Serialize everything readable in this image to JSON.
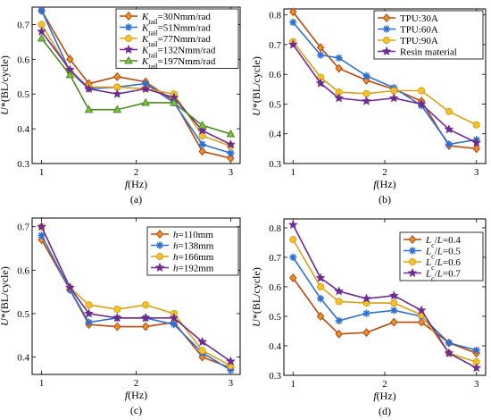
{
  "chart_data": [
    {
      "type": "line",
      "panel_label": "(a)",
      "xlabel_prefix": "f",
      "xlabel": "(Hz)",
      "ylabel_prefix": "U",
      "ylabel": "*(BL/cycle)",
      "xlim": [
        0.9,
        3.1
      ],
      "ylim": [
        0.3,
        0.75
      ],
      "xticks": [
        1,
        2,
        3
      ],
      "yticks": [
        0.3,
        0.4,
        0.5,
        0.6,
        0.7
      ],
      "legend_position": "top-right",
      "x": [
        1,
        1.3,
        1.5,
        1.8,
        2.1,
        2.4,
        2.7,
        3
      ],
      "series": [
        {
          "name_prefix": "K",
          "name_sub": "tail",
          "name": "=30Nmm/rad",
          "color": "#e8912a",
          "edge": "#b54a0e",
          "marker": "diamond",
          "values": [
            0.74,
            0.6,
            0.53,
            0.55,
            0.535,
            0.48,
            0.335,
            0.315
          ]
        },
        {
          "name_prefix": "K",
          "name_sub": "tail",
          "name": "=51Nmm/rad",
          "color": "#2f6fd0",
          "edge": "#2f6fd0",
          "marker": "asterisk",
          "values": [
            0.74,
            0.565,
            0.515,
            0.52,
            0.53,
            0.475,
            0.355,
            0.33
          ]
        },
        {
          "name_prefix": "K",
          "name_sub": "tail",
          "name": "=77Nmm/rad",
          "color": "#f2c22e",
          "edge": "#d8a21a",
          "marker": "circle",
          "values": [
            0.7,
            0.565,
            0.52,
            0.52,
            0.515,
            0.5,
            0.38,
            0.35
          ]
        },
        {
          "name_prefix": "K",
          "name_sub": "tail",
          "name": "=132Nmm/rad",
          "color": "#6e2c8e",
          "edge": "#6e2c8e",
          "marker": "star",
          "values": [
            0.68,
            0.57,
            0.515,
            0.5,
            0.515,
            0.49,
            0.395,
            0.355
          ]
        },
        {
          "name_prefix": "K",
          "name_sub": "tail",
          "name": "=197Nmm/rad",
          "color": "#7cc043",
          "edge": "#4e8a25",
          "marker": "triangle",
          "values": [
            0.66,
            0.555,
            0.455,
            0.455,
            0.475,
            0.475,
            0.41,
            0.385
          ]
        }
      ]
    },
    {
      "type": "line",
      "panel_label": "(b)",
      "xlabel_prefix": "f",
      "xlabel": "(Hz)",
      "ylabel_prefix": "U",
      "ylabel": "*(BL/cycle)",
      "xlim": [
        0.9,
        3.1
      ],
      "ylim": [
        0.3,
        0.82
      ],
      "xticks": [
        1,
        2,
        3
      ],
      "yticks": [
        0.3,
        0.4,
        0.5,
        0.6,
        0.7,
        0.8
      ],
      "legend_position": "top-right",
      "x": [
        1,
        1.3,
        1.5,
        1.8,
        2.1,
        2.4,
        2.7,
        3
      ],
      "series": [
        {
          "name": "TPU:30A",
          "color": "#e8912a",
          "edge": "#b54a0e",
          "marker": "diamond",
          "values": [
            0.81,
            0.69,
            0.62,
            0.58,
            0.55,
            0.51,
            0.36,
            0.35
          ]
        },
        {
          "name": "TPU:60A",
          "color": "#2f6fd0",
          "edge": "#2f6fd0",
          "marker": "asterisk",
          "values": [
            0.775,
            0.665,
            0.655,
            0.595,
            0.555,
            0.495,
            0.365,
            0.38
          ]
        },
        {
          "name": "TPU:90A",
          "color": "#f2c22e",
          "edge": "#d8a21a",
          "marker": "circle",
          "values": [
            0.71,
            0.59,
            0.54,
            0.535,
            0.545,
            0.545,
            0.475,
            0.43
          ]
        },
        {
          "name": "Resin material",
          "color": "#6e2c8e",
          "edge": "#6e2c8e",
          "marker": "star",
          "values": [
            0.7,
            0.57,
            0.52,
            0.51,
            0.52,
            0.5,
            0.415,
            0.37
          ]
        }
      ]
    },
    {
      "type": "line",
      "panel_label": "(c)",
      "xlabel_prefix": "f",
      "xlabel": "(Hz)",
      "ylabel_prefix": "U",
      "ylabel": "*(BL/cycle)",
      "xlim": [
        0.9,
        3.1
      ],
      "ylim": [
        0.36,
        0.72
      ],
      "xticks": [
        1,
        2,
        3
      ],
      "yticks": [
        0.4,
        0.5,
        0.6,
        0.7
      ],
      "legend_position": "top-right",
      "x": [
        1,
        1.3,
        1.5,
        1.8,
        2.1,
        2.4,
        2.7,
        3
      ],
      "series": [
        {
          "name_prefix": "h",
          "name": "=110mm",
          "color": "#e8912a",
          "edge": "#b54a0e",
          "marker": "diamond",
          "values": [
            0.67,
            0.555,
            0.475,
            0.47,
            0.47,
            0.48,
            0.4,
            0.375
          ]
        },
        {
          "name_prefix": "h",
          "name": "=138mm",
          "color": "#2f6fd0",
          "edge": "#2f6fd0",
          "marker": "asterisk",
          "values": [
            0.68,
            0.555,
            0.48,
            0.49,
            0.49,
            0.475,
            0.41,
            0.37
          ]
        },
        {
          "name_prefix": "h",
          "name": "=166mm",
          "color": "#f2c22e",
          "edge": "#d8a21a",
          "marker": "circle",
          "values": [
            0.7,
            0.56,
            0.52,
            0.51,
            0.52,
            0.5,
            0.415,
            0.38
          ]
        },
        {
          "name_prefix": "h",
          "name": "=192mm",
          "color": "#6e2c8e",
          "edge": "#6e2c8e",
          "marker": "star",
          "values": [
            0.7,
            0.56,
            0.5,
            0.49,
            0.49,
            0.49,
            0.435,
            0.39
          ]
        }
      ]
    },
    {
      "type": "line",
      "panel_label": "(d)",
      "xlabel_prefix": "f",
      "xlabel": "(Hz)",
      "ylabel_prefix": "U",
      "ylabel": "*(BL/cycle)",
      "xlim": [
        0.9,
        3.1
      ],
      "ylim": [
        0.3,
        0.83
      ],
      "xticks": [
        1,
        2,
        3
      ],
      "yticks": [
        0.3,
        0.4,
        0.5,
        0.6,
        0.7,
        0.8
      ],
      "legend_position": "top-right",
      "x": [
        1,
        1.3,
        1.5,
        1.8,
        2.1,
        2.4,
        2.7,
        3
      ],
      "series": [
        {
          "name_prefix": "L",
          "name_sub": "c",
          "name_mid": "/",
          "name_prefix2": "L",
          "name": "=0.4",
          "color": "#e8912a",
          "edge": "#b54a0e",
          "marker": "diamond",
          "values": [
            0.63,
            0.5,
            0.44,
            0.445,
            0.48,
            0.48,
            0.41,
            0.375
          ]
        },
        {
          "name_prefix": "L",
          "name_sub": "c",
          "name_mid": "/",
          "name_prefix2": "L",
          "name": "=0.5",
          "color": "#2f6fd0",
          "edge": "#2f6fd0",
          "marker": "asterisk",
          "values": [
            0.7,
            0.56,
            0.485,
            0.51,
            0.52,
            0.5,
            0.41,
            0.385
          ]
        },
        {
          "name_prefix": "L",
          "name_sub": "c",
          "name_mid": "/",
          "name_prefix2": "L",
          "name": "=0.6",
          "color": "#f2c22e",
          "edge": "#d8a21a",
          "marker": "circle",
          "values": [
            0.76,
            0.6,
            0.55,
            0.545,
            0.545,
            0.505,
            0.375,
            0.345
          ]
        },
        {
          "name_prefix": "L",
          "name_sub": "c",
          "name_mid": "/",
          "name_prefix2": "L",
          "name": "=0.7",
          "color": "#6e2c8e",
          "edge": "#6e2c8e",
          "marker": "star",
          "values": [
            0.81,
            0.63,
            0.585,
            0.56,
            0.57,
            0.52,
            0.375,
            0.325
          ]
        }
      ]
    }
  ]
}
